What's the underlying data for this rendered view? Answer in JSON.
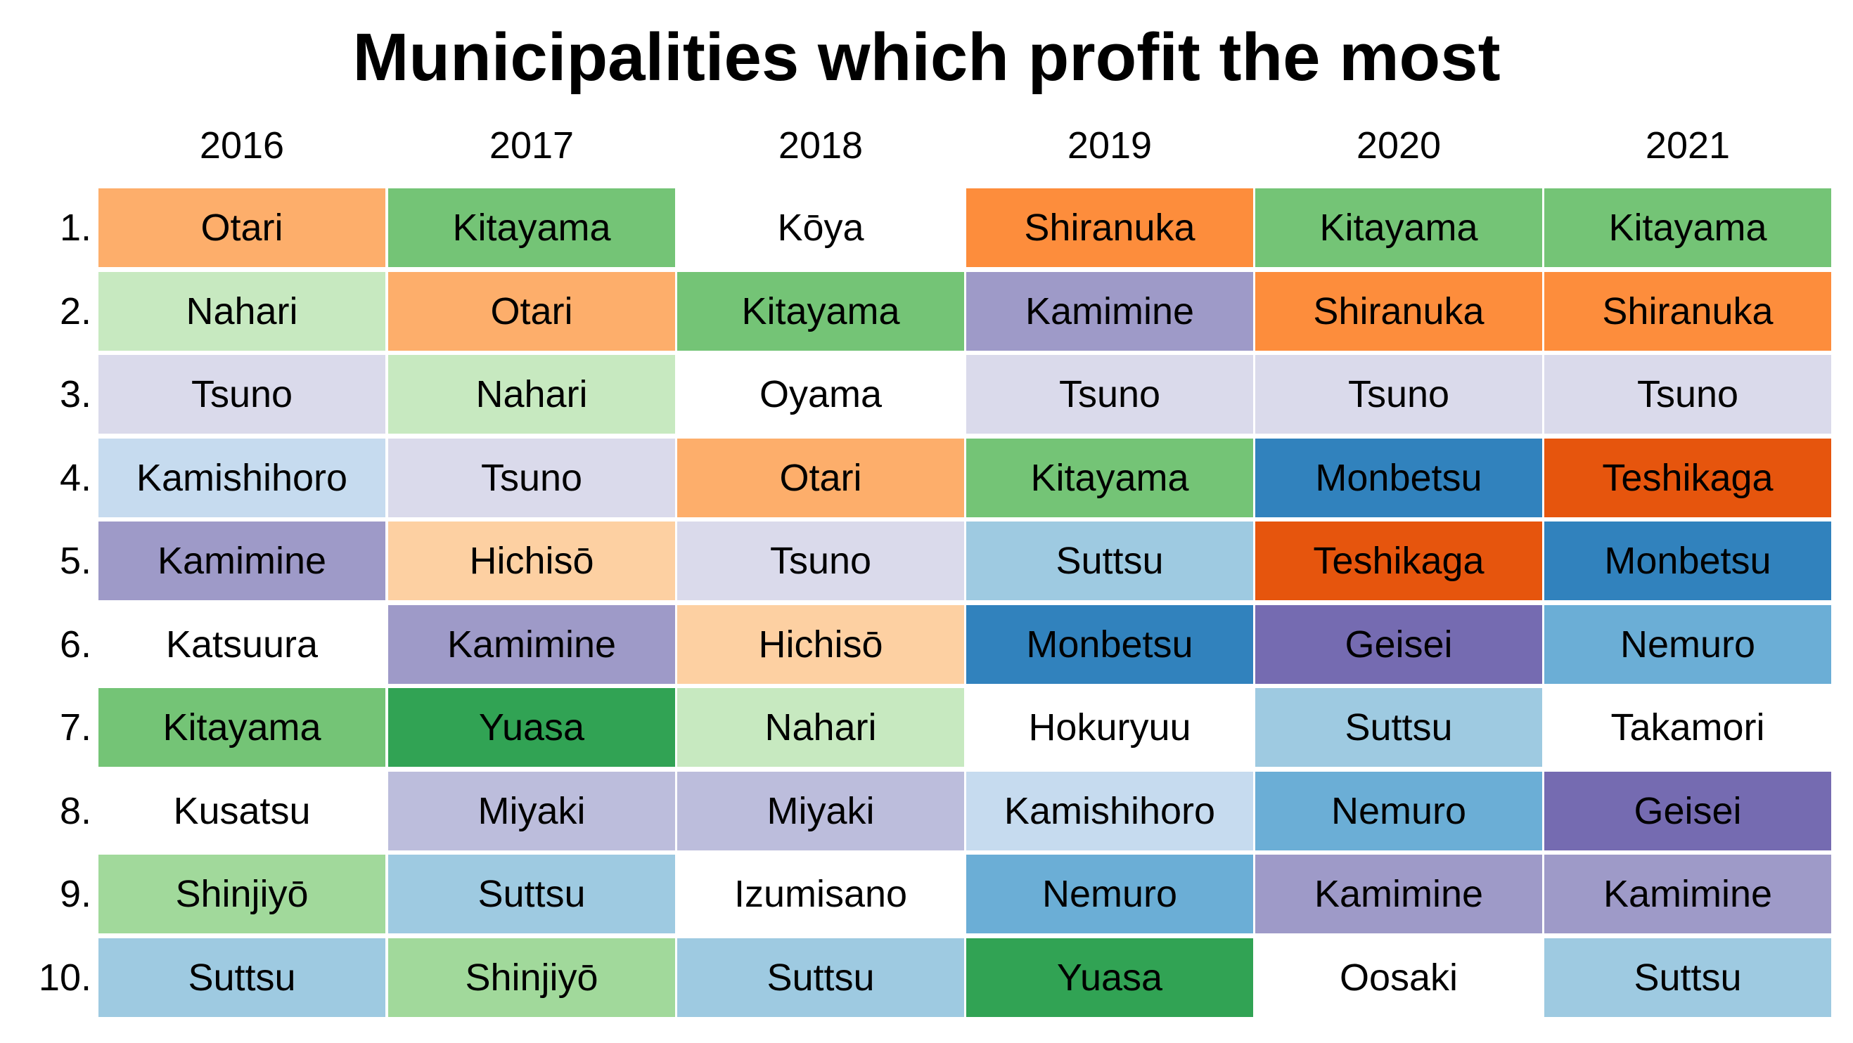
{
  "title": "Municipalities which profit the most",
  "chart_data": {
    "type": "table",
    "title": "Municipalities which profit the most",
    "years": [
      "2016",
      "2017",
      "2018",
      "2019",
      "2020",
      "2021"
    ],
    "ranks": [
      "1.",
      "2.",
      "3.",
      "4.",
      "5.",
      "6.",
      "7.",
      "8.",
      "9.",
      "10."
    ],
    "columns": [
      [
        "Otari",
        "Nahari",
        "Tsuno",
        "Kamishihoro",
        "Kamimine",
        "Katsuura",
        "Kitayama",
        "Kusatsu",
        "Shinjiyō",
        "Suttsu"
      ],
      [
        "Kitayama",
        "Otari",
        "Nahari",
        "Tsuno",
        "Hichisō",
        "Kamimine",
        "Yuasa",
        "Miyaki",
        "Suttsu",
        "Shinjiyō"
      ],
      [
        "Kōya",
        "Kitayama",
        "Oyama",
        "Otari",
        "Tsuno",
        "Hichisō",
        "Nahari",
        "Miyaki",
        "Izumisano",
        "Suttsu"
      ],
      [
        "Shiranuka",
        "Kamimine",
        "Tsuno",
        "Kitayama",
        "Suttsu",
        "Monbetsu",
        "Hokuryuu",
        "Kamishihoro",
        "Nemuro",
        "Yuasa"
      ],
      [
        "Kitayama",
        "Shiranuka",
        "Tsuno",
        "Monbetsu",
        "Teshikaga",
        "Geisei",
        "Suttsu",
        "Nemuro",
        "Kamimine",
        "Oosaki"
      ],
      [
        "Kitayama",
        "Shiranuka",
        "Tsuno",
        "Teshikaga",
        "Monbetsu",
        "Nemuro",
        "Takamori",
        "Geisei",
        "Kamimine",
        "Suttsu"
      ]
    ],
    "colors": {
      "Otari": "#fdae6b",
      "Nahari": "#c7e9c0",
      "Tsuno": "#dadaeb",
      "Kamishihoro": "#c6dbef",
      "Kamimine": "#9e9ac8",
      "Katsuura": "#ffffff",
      "Kitayama": "#74c476",
      "Kusatsu": "#ffffff",
      "Shinjiyō": "#a1d99b",
      "Suttsu": "#9ecae1",
      "Hichisō": "#fdd0a2",
      "Yuasa": "#31a354",
      "Miyaki": "#bcbddc",
      "Kōya": "#ffffff",
      "Oyama": "#ffffff",
      "Izumisano": "#ffffff",
      "Shiranuka": "#fd8d3c",
      "Monbetsu": "#3182bd",
      "Hokuryuu": "#ffffff",
      "Nemuro": "#6baed6",
      "Teshikaga": "#e6550d",
      "Geisei": "#756bb1",
      "Oosaki": "#ffffff",
      "Takamori": "#ffffff"
    }
  }
}
